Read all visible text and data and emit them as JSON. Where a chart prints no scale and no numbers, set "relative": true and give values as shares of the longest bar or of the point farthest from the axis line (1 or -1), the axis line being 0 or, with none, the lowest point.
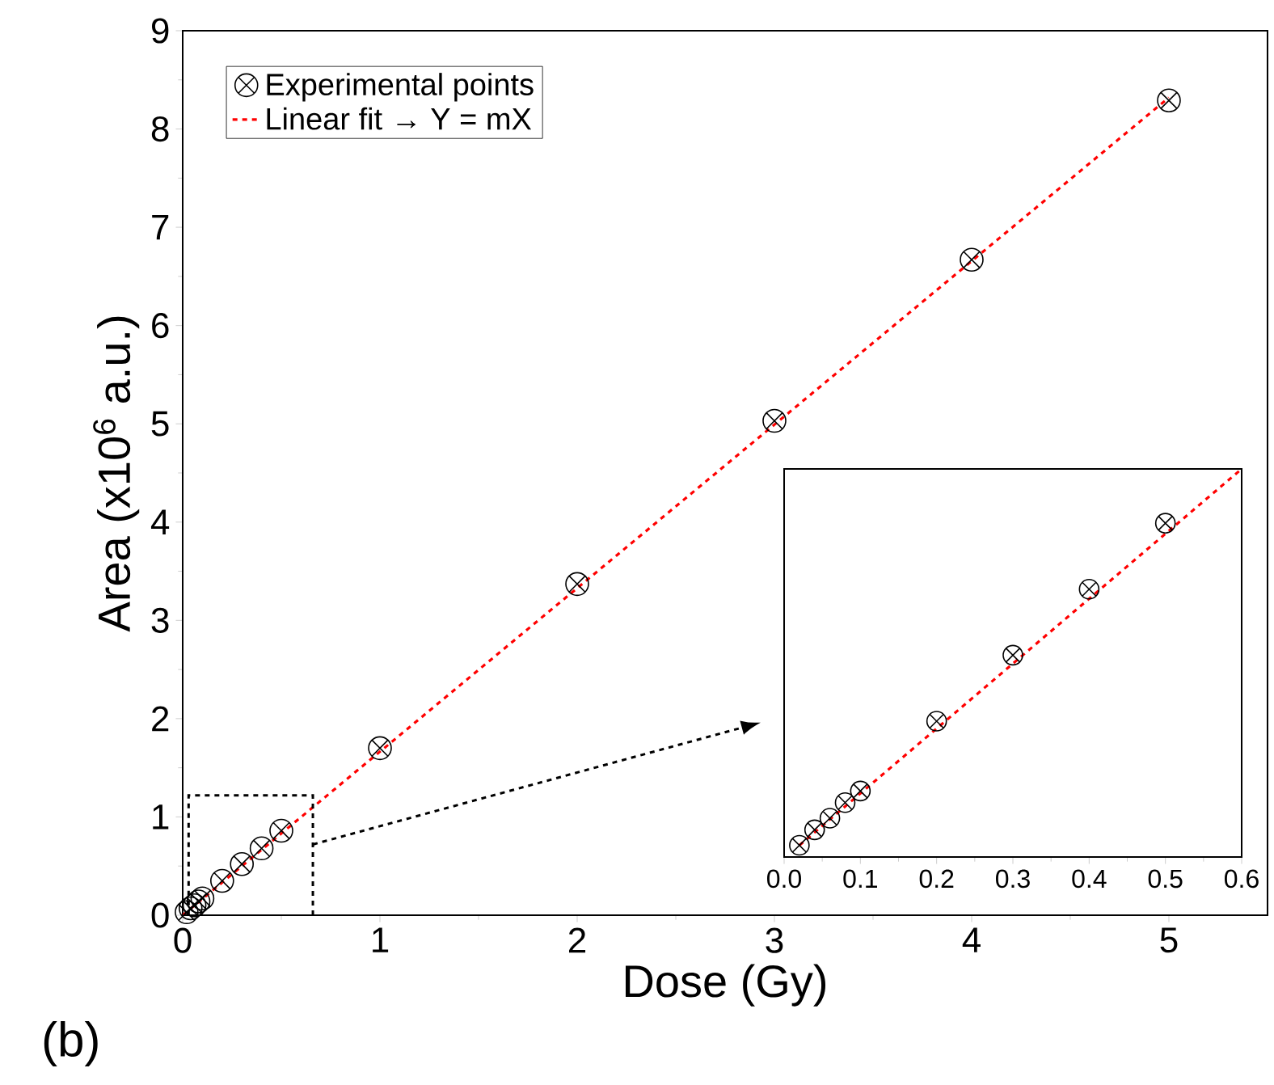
{
  "chart_data": [
    {
      "type": "scatter",
      "xlabel": "Dose (Gy)",
      "ylabel": "Area (x10$^{6}$ a.u.)",
      "xlim": [
        0,
        5.5
      ],
      "ylim": [
        0,
        9
      ],
      "xticks": [
        0,
        1,
        2,
        3,
        4,
        5
      ],
      "yticks": [
        0,
        1,
        2,
        3,
        4,
        5,
        6,
        7,
        8,
        9
      ],
      "legend": "top left",
      "annotations": [
        "(b)"
      ],
      "series": [
        {
          "name": "Experimental points",
          "color": "#000000",
          "marker": "cross",
          "x": [
            0.02,
            0.04,
            0.06,
            0.08,
            0.1,
            0.2,
            0.3,
            0.4,
            0.5,
            1,
            2,
            3,
            4,
            5
          ],
          "values": [
            0.03,
            0.07,
            0.1,
            0.14,
            0.17,
            0.35,
            0.52,
            0.68,
            0.86,
            1.7,
            3.37,
            5.03,
            6.67,
            8.29
          ]
        },
        {
          "name": "Linear fit → Y = mX",
          "type": "line",
          "color": "#ff0000",
          "line_style": "dashed",
          "marker": "none",
          "x": [
            0,
            5
          ],
          "values": [
            0,
            8.32
          ]
        }
      ]
    },
    {
      "type": "scatter",
      "relative": true,
      "xlim": [
        0,
        0.6
      ],
      "xticks": [
        {
          "value": 0,
          "label": "0.0"
        },
        0.1,
        0.2,
        0.3,
        0.4,
        0.5,
        0.6
      ],
      "tick_labels": "x",
      "series": [
        {
          "color": "#000000",
          "marker": "cross",
          "x": [
            0.02,
            0.04,
            0.06,
            0.08,
            0.1,
            0.2,
            0.3,
            0.4,
            0.5
          ],
          "values": [
            0.03,
            0.07,
            0.1,
            0.14,
            0.17,
            0.35,
            0.52,
            0.69,
            0.86
          ]
        },
        {
          "type": "line",
          "color": "#ff0000",
          "line_style": "dashed",
          "marker": "none",
          "x": [
            0.02,
            0.6
          ],
          "values": [
            0.03,
            1.0
          ]
        }
      ]
    }
  ]
}
